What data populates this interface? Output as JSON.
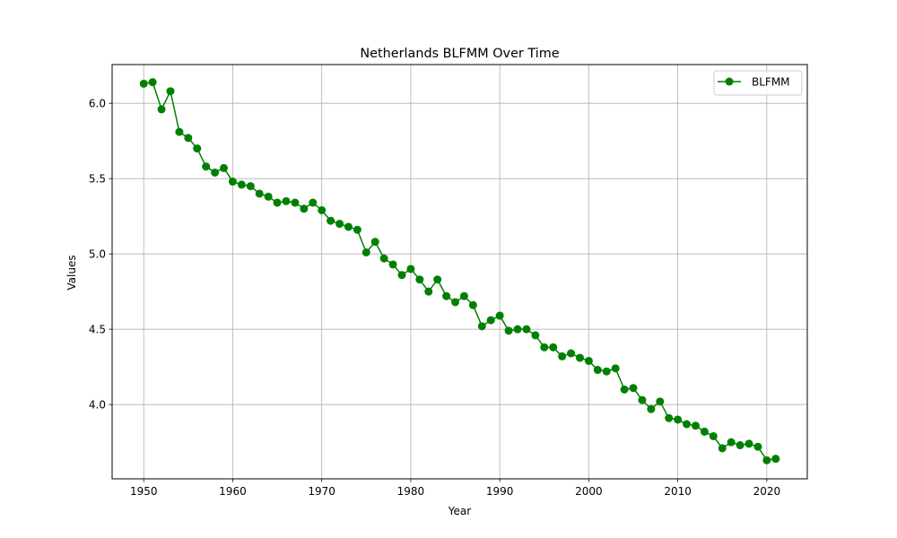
{
  "chart_data": {
    "type": "line",
    "title": "Netherlands BLFMM Over Time",
    "xlabel": "Year",
    "ylabel": "Values",
    "xlim": [
      1946.45,
      2024.55
    ],
    "ylim": [
      3.507,
      6.257
    ],
    "x_ticks": [
      1950,
      1960,
      1970,
      1980,
      1990,
      2000,
      2010,
      2020
    ],
    "y_ticks": [
      4.0,
      4.5,
      5.0,
      5.5,
      6.0
    ],
    "grid": true,
    "legend_position": "top-right",
    "series": [
      {
        "name": "BLFMM",
        "color": "#008000",
        "marker": "circle",
        "x": [
          1950,
          1951,
          1952,
          1953,
          1954,
          1955,
          1956,
          1957,
          1958,
          1959,
          1960,
          1961,
          1962,
          1963,
          1964,
          1965,
          1966,
          1967,
          1968,
          1969,
          1970,
          1971,
          1972,
          1973,
          1974,
          1975,
          1976,
          1977,
          1978,
          1979,
          1980,
          1981,
          1982,
          1983,
          1984,
          1985,
          1986,
          1987,
          1988,
          1989,
          1990,
          1991,
          1992,
          1993,
          1994,
          1995,
          1996,
          1997,
          1998,
          1999,
          2000,
          2001,
          2002,
          2003,
          2004,
          2005,
          2006,
          2007,
          2008,
          2009,
          2010,
          2011,
          2012,
          2013,
          2014,
          2015,
          2016,
          2017,
          2018,
          2019,
          2020,
          2021
        ],
        "values": [
          6.13,
          6.14,
          5.96,
          6.08,
          5.81,
          5.77,
          5.7,
          5.58,
          5.54,
          5.57,
          5.48,
          5.46,
          5.45,
          5.4,
          5.38,
          5.34,
          5.35,
          5.34,
          5.3,
          5.34,
          5.29,
          5.22,
          5.2,
          5.18,
          5.16,
          5.01,
          5.08,
          4.97,
          4.93,
          4.86,
          4.9,
          4.83,
          4.75,
          4.83,
          4.72,
          4.68,
          4.72,
          4.66,
          4.52,
          4.56,
          4.59,
          4.49,
          4.5,
          4.5,
          4.46,
          4.38,
          4.38,
          4.32,
          4.34,
          4.31,
          4.29,
          4.23,
          4.22,
          4.24,
          4.1,
          4.11,
          4.03,
          3.97,
          4.02,
          3.91,
          3.9,
          3.87,
          3.86,
          3.82,
          3.79,
          3.71,
          3.75,
          3.73,
          3.74,
          3.72,
          3.63,
          3.64
        ]
      }
    ]
  }
}
